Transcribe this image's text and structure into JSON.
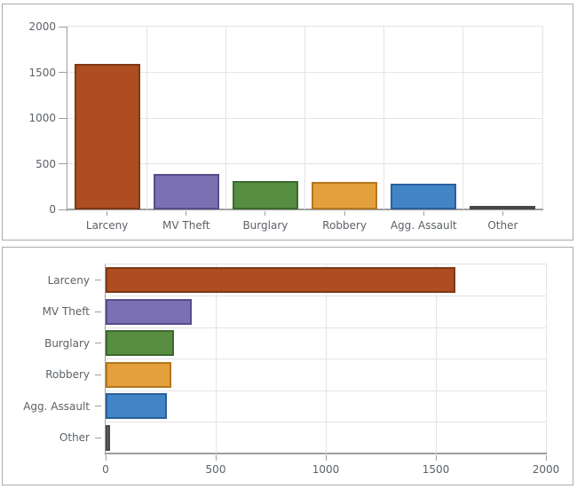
{
  "chart_data": [
    {
      "type": "bar",
      "orientation": "vertical",
      "title": "",
      "xlabel": "",
      "ylabel": "",
      "categories": [
        "Larceny",
        "MV Theft",
        "Burglary",
        "Robbery",
        "Agg. Assault",
        "Other"
      ],
      "values": [
        1590,
        390,
        310,
        300,
        280,
        20
      ],
      "value_axis": {
        "min": 0,
        "max": 2000,
        "ticks": [
          0,
          500,
          1000,
          1500,
          2000
        ]
      },
      "grid": true,
      "legend": "none",
      "bar_fill_colors": [
        "#ae4d21",
        "#7b70b2",
        "#568d41",
        "#e5a03e",
        "#4285c7",
        "#64686b"
      ],
      "bar_border_colors": [
        "#7e3916",
        "#574d8c",
        "#3c692e",
        "#b3771f",
        "#2b609b",
        "#46494b"
      ]
    },
    {
      "type": "bar",
      "orientation": "horizontal",
      "title": "",
      "xlabel": "",
      "ylabel": "",
      "categories": [
        "Larceny",
        "MV Theft",
        "Burglary",
        "Robbery",
        "Agg. Assault",
        "Other"
      ],
      "values": [
        1590,
        390,
        310,
        300,
        280,
        20
      ],
      "value_axis": {
        "min": 0,
        "max": 2000,
        "ticks": [
          0,
          500,
          1000,
          1500,
          2000
        ]
      },
      "grid": true,
      "legend": "none",
      "bar_fill_colors": [
        "#ae4d21",
        "#7b70b2",
        "#568d41",
        "#e5a03e",
        "#4285c7",
        "#64686b"
      ],
      "bar_border_colors": [
        "#7e3916",
        "#574d8c",
        "#3c692e",
        "#b3771f",
        "#2b609b",
        "#46494b"
      ]
    }
  ],
  "styles": {
    "gridline_color": "#e4e4e4",
    "axis_line_color": "#9e9e9e",
    "label_color": "#5c6268",
    "panel_border_color": "#ababab",
    "background_color": "#ffffff"
  }
}
